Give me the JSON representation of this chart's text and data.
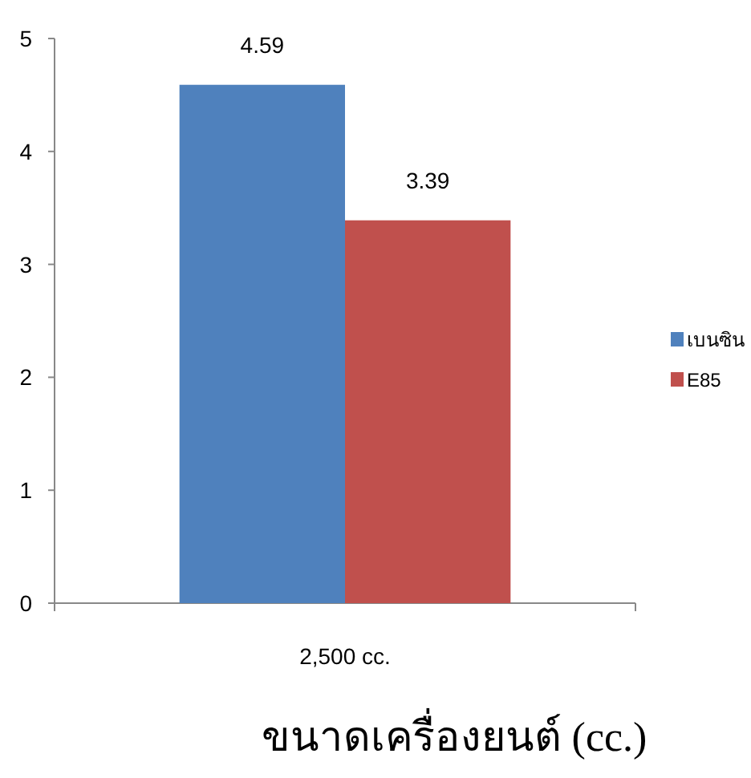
{
  "chart_data": {
    "type": "bar",
    "xlabel": "ขนาดเครื่องยนต์ (cc.)",
    "categories": [
      "2,500 cc."
    ],
    "series": [
      {
        "name": "เบนซิน",
        "color": "#4f81bd",
        "values": [
          4.59
        ]
      },
      {
        "name": "E85",
        "color": "#c0504d",
        "values": [
          3.39
        ]
      }
    ],
    "ylim": [
      0,
      5
    ],
    "yticks": [
      0,
      1,
      2,
      3,
      4,
      5
    ],
    "data_labels": true,
    "legend": "right"
  }
}
